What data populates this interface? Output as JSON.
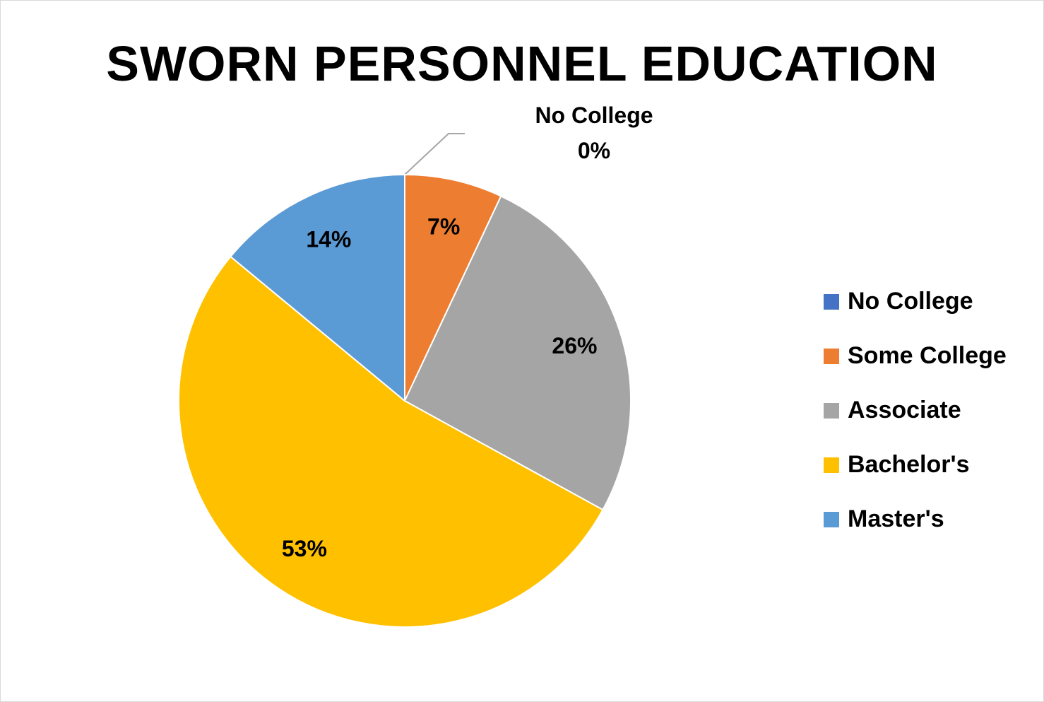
{
  "chart_data": {
    "type": "pie",
    "title": "SWORN PERSONNEL EDUCATION",
    "slices": [
      {
        "label": "No College",
        "value": 0,
        "display": "0%",
        "color": "#4472c4"
      },
      {
        "label": "Some College",
        "value": 7,
        "display": "7%",
        "color": "#ed7d31"
      },
      {
        "label": "Associate",
        "value": 26,
        "display": "26%",
        "color": "#a5a5a5"
      },
      {
        "label": "Bachelor's",
        "value": 53,
        "display": "53%",
        "color": "#ffc000"
      },
      {
        "label": "Master's",
        "value": 14,
        "display": "14%",
        "color": "#5b9bd5"
      }
    ],
    "legend_position": "right"
  }
}
